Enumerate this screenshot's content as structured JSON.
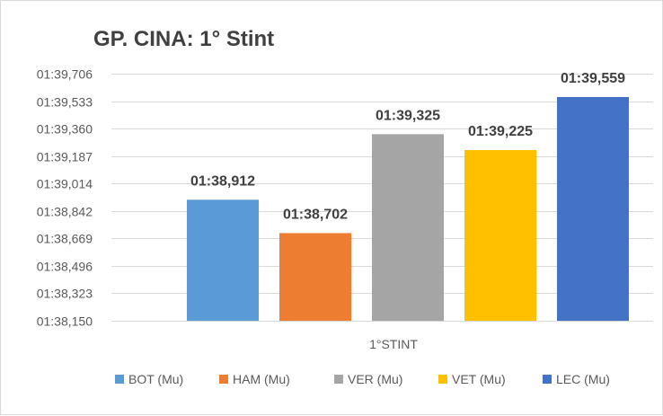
{
  "chart_data": {
    "type": "bar",
    "title": "GP. CINA: 1° Stint",
    "categories": [
      "1°STINT"
    ],
    "series": [
      {
        "name": "BOT (Mu)",
        "values": [
          98.912
        ],
        "label": "01:38,912",
        "color": "#5B9BD5"
      },
      {
        "name": "HAM (Mu)",
        "values": [
          98.702
        ],
        "label": "01:38,702",
        "color": "#ED7D31"
      },
      {
        "name": "VER (Mu)",
        "values": [
          99.325
        ],
        "label": "01:39,325",
        "color": "#A5A5A5"
      },
      {
        "name": "VET (Mu)",
        "values": [
          99.225
        ],
        "label": "01:39,225",
        "color": "#FFC000"
      },
      {
        "name": "LEC (Mu)",
        "values": [
          99.559
        ],
        "label": "01:39,559",
        "color": "#4472C4"
      }
    ],
    "ylim": [
      98.15,
      99.706
    ],
    "yticks": [
      {
        "value": 98.15,
        "label": "01:38,150"
      },
      {
        "value": 98.323,
        "label": "01:38,323"
      },
      {
        "value": 98.496,
        "label": "01:38,496"
      },
      {
        "value": 98.669,
        "label": "01:38,669"
      },
      {
        "value": 98.842,
        "label": "01:38,842"
      },
      {
        "value": 99.014,
        "label": "01:39,014"
      },
      {
        "value": 99.187,
        "label": "01:39,187"
      },
      {
        "value": 99.36,
        "label": "01:39,360"
      },
      {
        "value": 99.533,
        "label": "01:39,533"
      },
      {
        "value": 99.706,
        "label": "01:39,706"
      }
    ],
    "xlabel": "",
    "ylabel": "",
    "grid": true,
    "legend": "bottom"
  }
}
